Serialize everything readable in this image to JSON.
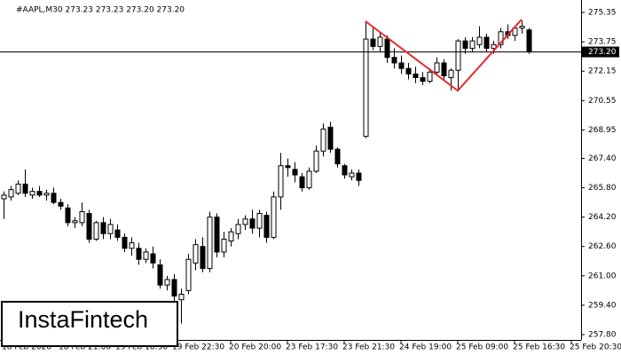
{
  "chart_data": {
    "type": "candlestick",
    "header": "#AAPL,M30  273.23 273.23 273.20 273.20",
    "logo": "InstaFintech",
    "categories": [
      "18 Feb 2026",
      null,
      null,
      null,
      null,
      null,
      null,
      null,
      "18 Feb 21:00",
      null,
      null,
      null,
      null,
      null,
      null,
      null,
      "19 Feb 18:30",
      null,
      null,
      null,
      null,
      null,
      null,
      null,
      "19 Feb 22:30",
      null,
      null,
      null,
      null,
      null,
      null,
      null,
      "20 Feb 20:00",
      null,
      null,
      null,
      null,
      null,
      null,
      null,
      "23 Feb 17:30",
      null,
      null,
      null,
      null,
      null,
      null,
      null,
      "23 Feb 21:30",
      null,
      null,
      null,
      null,
      null,
      null,
      null,
      "24 Feb 19:00",
      null,
      null,
      null,
      null,
      null,
      null,
      null,
      "25 Feb 09:00",
      null,
      null,
      null,
      null,
      null,
      null,
      null,
      "25 Feb 16:30",
      null,
      null,
      null,
      null,
      null,
      null,
      null,
      "25 Feb 20:30"
    ],
    "open": [
      265.2,
      265.3,
      265.5,
      266.0,
      265.4,
      265.6,
      265.4,
      265.5,
      265.0,
      264.7,
      263.9,
      263.9,
      264.4,
      263.0,
      263.9,
      263.3,
      263.5,
      263.1,
      262.5,
      262.5,
      261.9,
      262.2,
      261.6,
      260.5,
      260.8,
      259.7,
      260.2,
      261.7,
      262.6,
      261.4,
      264.2,
      262.3,
      262.9,
      263.3,
      263.8,
      264.1,
      263.6,
      264.3,
      263.1,
      265.3,
      267.0,
      266.8,
      266.4,
      265.8,
      266.7,
      267.8,
      269.1,
      267.9,
      267.0,
      266.4,
      266.6,
      268.6,
      273.9,
      273.5,
      273.9,
      272.9,
      272.6,
      272.3,
      272.0,
      271.8,
      271.6,
      272.1,
      272.6,
      271.8,
      272.2,
      273.8,
      273.4,
      273.6,
      274.0,
      273.4,
      273.6,
      274.3,
      274.1,
      274.5,
      274.4,
      null,
      null,
      null,
      null,
      null,
      null
    ],
    "high": [
      265.6,
      265.9,
      266.2,
      266.8,
      265.8,
      265.9,
      265.7,
      265.8,
      265.2,
      264.9,
      264.2,
      265.0,
      264.6,
      264.0,
      264.2,
      264.1,
      263.8,
      263.3,
      263.1,
      262.8,
      262.5,
      262.6,
      261.9,
      261.0,
      261.1,
      260.3,
      262.2,
      263.0,
      263.1,
      264.5,
      264.4,
      263.4,
      263.6,
      264.1,
      264.3,
      264.6,
      264.6,
      264.5,
      265.6,
      267.7,
      267.4,
      267.2,
      266.6,
      266.9,
      268.1,
      269.3,
      269.4,
      268.0,
      267.1,
      266.8,
      266.8,
      274.9,
      274.5,
      274.3,
      274.1,
      273.4,
      273.0,
      272.6,
      272.4,
      272.1,
      272.3,
      272.9,
      272.8,
      272.3,
      273.9,
      274.0,
      274.0,
      274.6,
      274.2,
      273.8,
      274.5,
      274.7,
      274.6,
      274.9,
      274.5,
      null,
      null,
      null,
      null,
      null,
      null
    ],
    "low": [
      264.1,
      265.1,
      265.4,
      265.3,
      265.2,
      265.3,
      265.1,
      264.9,
      264.6,
      263.7,
      263.6,
      263.7,
      262.8,
      262.9,
      263.0,
      263.0,
      262.9,
      262.3,
      262.1,
      261.6,
      261.7,
      261.4,
      260.3,
      260.2,
      259.6,
      258.4,
      260.0,
      261.3,
      261.2,
      261.2,
      262.0,
      262.0,
      262.6,
      263.0,
      263.5,
      263.3,
      263.1,
      262.8,
      263.0,
      264.6,
      266.4,
      266.1,
      265.6,
      265.7,
      266.6,
      267.5,
      267.7,
      266.9,
      266.3,
      266.2,
      265.9,
      268.5,
      273.3,
      273.2,
      272.6,
      272.3,
      272.0,
      271.7,
      271.5,
      271.4,
      271.5,
      271.9,
      271.7,
      271.1,
      271.1,
      273.1,
      273.2,
      273.4,
      273.2,
      273.1,
      273.4,
      273.9,
      273.8,
      274.2,
      273.1,
      null,
      null,
      null,
      null,
      null,
      null
    ],
    "close": [
      265.4,
      265.7,
      266.0,
      265.5,
      265.6,
      265.4,
      265.5,
      265.0,
      264.8,
      263.9,
      264.0,
      264.5,
      263.0,
      263.9,
      263.3,
      263.8,
      263.1,
      262.5,
      262.8,
      261.9,
      262.3,
      261.7,
      260.5,
      260.8,
      259.9,
      260.0,
      261.9,
      262.7,
      261.4,
      264.2,
      262.3,
      263.0,
      263.4,
      263.8,
      264.1,
      263.6,
      264.4,
      263.1,
      265.3,
      267.0,
      266.9,
      266.5,
      265.8,
      266.7,
      267.8,
      269.0,
      267.9,
      267.1,
      266.5,
      266.6,
      266.2,
      273.9,
      273.5,
      274.0,
      272.9,
      272.6,
      272.3,
      272.0,
      271.8,
      271.6,
      272.1,
      272.6,
      271.9,
      272.2,
      273.8,
      273.4,
      273.8,
      274.0,
      273.4,
      273.6,
      274.3,
      274.1,
      274.5,
      274.6,
      273.2,
      null,
      null,
      null,
      null,
      null,
      null
    ],
    "up_color": "#ffffff",
    "down_color": "#000000",
    "ylim": [
      257.51,
      276.03
    ],
    "yticks": [
      275.35,
      273.75,
      272.15,
      270.55,
      268.95,
      {
        "value": 267.4,
        "label": "267.40"
      },
      {
        "value": 265.8,
        "label": "265.80"
      },
      {
        "value": 264.2,
        "label": "264.20"
      },
      {
        "value": 262.6,
        "label": "262.60"
      },
      {
        "value": 261.0,
        "label": "261.00"
      },
      {
        "value": 259.4,
        "label": "259.40"
      },
      {
        "value": 257.8,
        "label": "257.80"
      }
    ],
    "current_price": {
      "value": 273.2,
      "label": "273.20"
    },
    "pattern_lines": {
      "color": "#e8282b",
      "x": [
        51,
        64,
        73
      ],
      "y": [
        274.87,
        271.09,
        274.97
      ]
    }
  }
}
